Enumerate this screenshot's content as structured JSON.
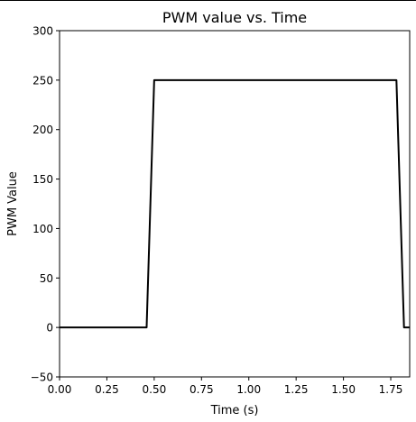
{
  "chart_data": {
    "type": "line",
    "title": "PWM value vs. Time",
    "xlabel": "Time (s)",
    "ylabel": "PWM Value",
    "xlim": [
      0.0,
      1.85
    ],
    "ylim": [
      -50,
      300
    ],
    "xticks": [
      0.0,
      0.25,
      0.5,
      0.75,
      1.0,
      1.25,
      1.5,
      1.75
    ],
    "xtick_labels": [
      "0.00",
      "0.25",
      "0.50",
      "0.75",
      "1.00",
      "1.25",
      "1.50",
      "1.75"
    ],
    "yticks": [
      -50,
      0,
      50,
      100,
      150,
      200,
      250,
      300
    ],
    "ytick_labels": [
      "−50",
      "0",
      "50",
      "100",
      "150",
      "200",
      "250",
      "300"
    ],
    "grid": false,
    "line_color": "#000000",
    "series": [
      {
        "x": [
          0.0,
          0.46,
          0.5,
          1.78,
          1.82,
          1.85
        ],
        "y": [
          0,
          0,
          250,
          250,
          0,
          0
        ]
      }
    ]
  }
}
